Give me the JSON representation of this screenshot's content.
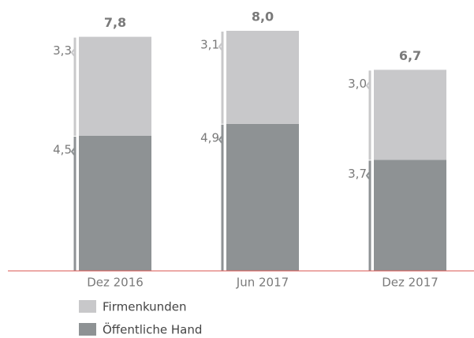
{
  "chart_data": {
    "type": "stacked_bar",
    "categories": [
      "Dez 2016",
      "Jun 2017",
      "Dez 2017"
    ],
    "series": [
      {
        "name": "Öffentliche Hand",
        "color": "#8e9294",
        "values": [
          4.5,
          4.9,
          3.7
        ],
        "value_labels": [
          "4,5",
          "4,9",
          "3,7"
        ]
      },
      {
        "name": "Firmenkunden",
        "color": "#c8c8ca",
        "values": [
          3.3,
          3.1,
          3.0
        ],
        "value_labels": [
          "3,3",
          "3,1",
          "3,0"
        ]
      }
    ],
    "totals": [
      7.8,
      8.0,
      6.7
    ],
    "total_labels": [
      "7,8",
      "8,0",
      "6,7"
    ],
    "ylim": [
      0,
      9
    ],
    "baseline_color": "#d9534f"
  }
}
